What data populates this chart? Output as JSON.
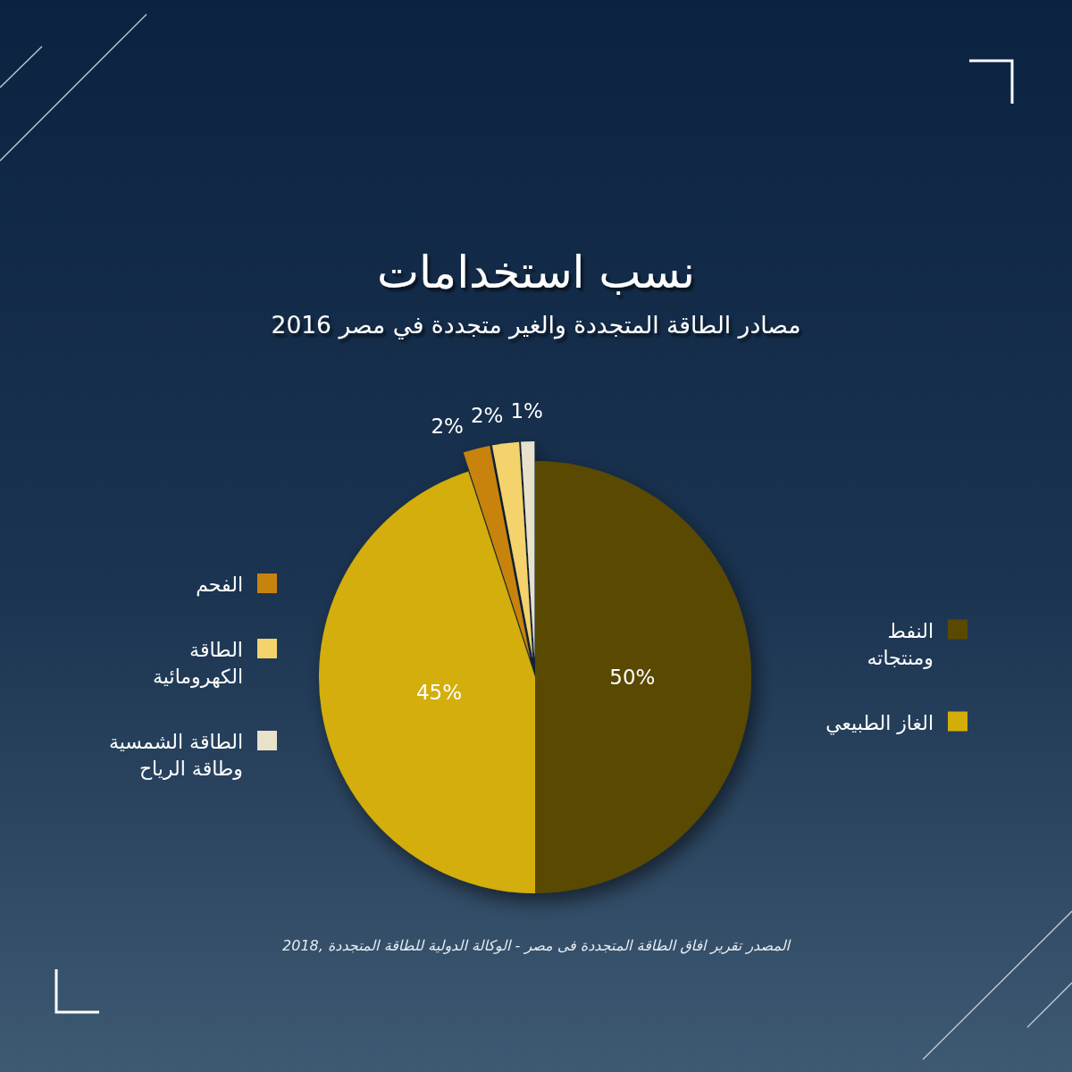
{
  "chart_data": {
    "type": "pie",
    "title": "نسب استخدامات",
    "subtitle": "مصادر الطاقة المتجددة والغير متجددة في مصر 2016",
    "categories": [
      "النفط ومنتجاته",
      "الغاز الطبيعي",
      "الفحم",
      "الطاقة الكهرومائية",
      "الطاقة الشمسية وطاقة الرياح"
    ],
    "values": [
      50,
      45,
      2,
      2,
      1
    ],
    "colors": [
      "#5a4a00",
      "#d3ae07",
      "#c8830e",
      "#f4d26c",
      "#e8e2cb"
    ],
    "value_labels": [
      "50%",
      "45%",
      "2%",
      "2%",
      "1%"
    ],
    "legend": "right",
    "annotations": [
      "المصدر تقرير افاق الطاقة المتجددة فى مصر - الوكالة الدولية للطاقة المتجددة ,2018"
    ]
  }
}
